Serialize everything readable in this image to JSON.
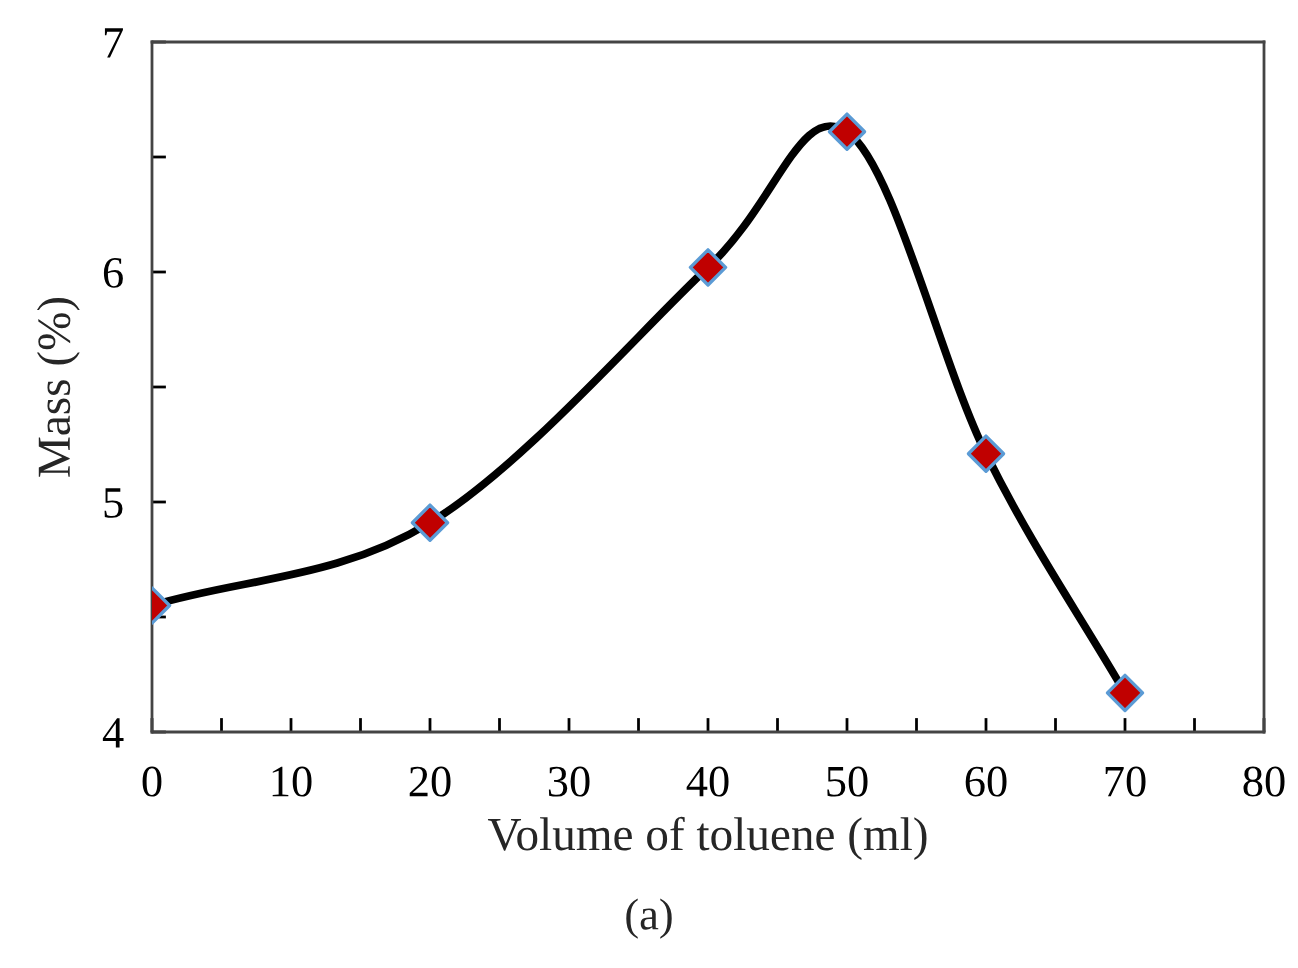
{
  "chart_data": {
    "type": "line",
    "xlabel": "Volume of toluene (ml)",
    "ylabel": "Mass (%)",
    "x": [
      0,
      20,
      40,
      50,
      60,
      70
    ],
    "series": [
      {
        "color": "#000000",
        "colors": [
          "#c00000",
          "#c00000",
          "#c00000",
          "#c00000",
          "#c00000",
          "#c00000"
        ],
        "values": [
          4.55,
          4.91,
          6.02,
          6.61,
          5.21,
          4.17
        ]
      }
    ],
    "xlim": [
      0,
      80
    ],
    "ylim": [
      4,
      7
    ],
    "xticks": [
      0,
      {
        "value": 5,
        "label": null
      },
      10,
      {
        "value": 15,
        "label": null
      },
      20,
      {
        "value": 25,
        "label": null
      },
      30,
      {
        "value": 35,
        "label": null
      },
      40,
      {
        "value": 45,
        "label": null
      },
      50,
      {
        "value": 55,
        "label": null
      },
      60,
      {
        "value": 65,
        "label": null
      },
      70,
      {
        "value": 75,
        "label": null
      },
      80
    ],
    "yticks": [
      4,
      {
        "value": 4.5,
        "label": null
      },
      5,
      {
        "value": 5.5,
        "label": null
      },
      6,
      {
        "value": 6.5,
        "label": null
      },
      7
    ],
    "marker": "diamond",
    "line_style": "solid",
    "grid": false,
    "legend": false,
    "annotations": [
      "(a)"
    ]
  }
}
